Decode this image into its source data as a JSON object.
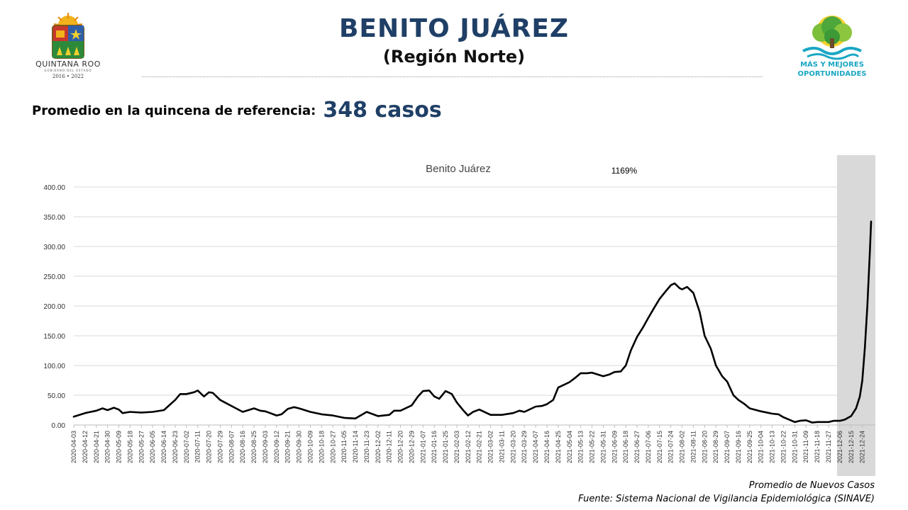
{
  "header": {
    "title": "BENITO JUÁREZ",
    "subtitle": "(Región Norte)"
  },
  "summary": {
    "label": "Promedio en la quincena de referencia:",
    "value": "348 casos"
  },
  "logo_left": {
    "name": "QUINTANA ROO",
    "line2": "GOBIERNO DEL ESTADO",
    "years": "2016 • 2022"
  },
  "logo_right": {
    "line1": "MÁS Y MEJORES",
    "line2": "OPORTUNIDADES"
  },
  "footer": {
    "line1": "Promedio de Nuevos Casos",
    "source": "Fuente: Sistema Nacional de Vigilancia Epidemiológica (SINAVE)"
  },
  "colors": {
    "title": "#1f3f66",
    "line": "#000000",
    "highlight": "#d9d9d9",
    "grid": "#d9d9d9"
  },
  "chart_data": {
    "type": "line",
    "title": "Benito Juárez",
    "annotation": "1169%",
    "ylim": [
      0,
      400
    ],
    "yticks": [
      "0.00",
      "50.00",
      "100.00",
      "150.00",
      "200.00",
      "250.00",
      "300.00",
      "350.00",
      "400.00"
    ],
    "grid": "horizontal",
    "x_start": "2020-04-03",
    "x_end": "2021-12-31",
    "xticks": [
      "2020-04-03",
      "2020-04-12",
      "2020-04-21",
      "2020-04-30",
      "2020-05-09",
      "2020-05-18",
      "2020-05-27",
      "2020-06-05",
      "2020-06-14",
      "2020-06-23",
      "2020-07-02",
      "2020-07-11",
      "2020-07-20",
      "2020-07-29",
      "2020-08-07",
      "2020-08-16",
      "2020-08-25",
      "2020-09-03",
      "2020-09-12",
      "2020-09-21",
      "2020-09-30",
      "2020-10-09",
      "2020-10-18",
      "2020-10-27",
      "2020-11-05",
      "2020-11-14",
      "2020-11-23",
      "2020-12-02",
      "2020-12-11",
      "2020-12-20",
      "2020-12-29",
      "2021-01-07",
      "2021-01-16",
      "2021-01-25",
      "2021-02-03",
      "2021-02-12",
      "2021-02-21",
      "2021-03-02",
      "2021-03-11",
      "2021-03-20",
      "2021-03-29",
      "2021-04-07",
      "2021-04-16",
      "2021-04-25",
      "2021-05-04",
      "2021-05-13",
      "2021-05-22",
      "2021-05-31",
      "2021-06-09",
      "2021-06-18",
      "2021-06-27",
      "2021-07-06",
      "2021-07-15",
      "2021-07-24",
      "2021-08-02",
      "2021-08-11",
      "2021-08-20",
      "2021-08-29",
      "2021-09-07",
      "2021-09-16",
      "2021-09-25",
      "2021-10-04",
      "2021-10-13",
      "2021-10-22",
      "2021-10-31",
      "2021-11-09",
      "2021-11-18",
      "2021-11-27",
      "2021-12-06",
      "2021-12-15",
      "2021-12-24"
    ],
    "highlight_range": [
      "2021-12-06",
      "2021-12-31"
    ],
    "series": [
      {
        "points": [
          [
            "2020-04-03",
            14
          ],
          [
            "2020-04-12",
            20
          ],
          [
            "2020-04-21",
            24
          ],
          [
            "2020-04-26",
            28
          ],
          [
            "2020-04-30",
            25
          ],
          [
            "2020-05-05",
            29
          ],
          [
            "2020-05-09",
            26
          ],
          [
            "2020-05-12",
            20
          ],
          [
            "2020-05-18",
            22
          ],
          [
            "2020-05-27",
            21
          ],
          [
            "2020-06-05",
            22
          ],
          [
            "2020-06-14",
            25
          ],
          [
            "2020-06-23",
            42
          ],
          [
            "2020-06-27",
            52
          ],
          [
            "2020-07-02",
            52
          ],
          [
            "2020-07-08",
            55
          ],
          [
            "2020-07-11",
            58
          ],
          [
            "2020-07-16",
            48
          ],
          [
            "2020-07-20",
            55
          ],
          [
            "2020-07-23",
            54
          ],
          [
            "2020-07-29",
            42
          ],
          [
            "2020-08-07",
            32
          ],
          [
            "2020-08-16",
            22
          ],
          [
            "2020-08-25",
            28
          ],
          [
            "2020-08-30",
            24
          ],
          [
            "2020-09-03",
            23
          ],
          [
            "2020-09-12",
            16
          ],
          [
            "2020-09-16",
            18
          ],
          [
            "2020-09-21",
            27
          ],
          [
            "2020-09-26",
            30
          ],
          [
            "2020-09-30",
            28
          ],
          [
            "2020-10-09",
            22
          ],
          [
            "2020-10-18",
            18
          ],
          [
            "2020-10-27",
            16
          ],
          [
            "2020-11-05",
            12
          ],
          [
            "2020-11-14",
            11
          ],
          [
            "2020-11-23",
            22
          ],
          [
            "2020-12-02",
            15
          ],
          [
            "2020-12-11",
            17
          ],
          [
            "2020-12-15",
            24
          ],
          [
            "2020-12-20",
            24
          ],
          [
            "2020-12-29",
            33
          ],
          [
            "2021-01-03",
            48
          ],
          [
            "2021-01-07",
            57
          ],
          [
            "2021-01-12",
            58
          ],
          [
            "2021-01-16",
            48
          ],
          [
            "2021-01-20",
            44
          ],
          [
            "2021-01-25",
            57
          ],
          [
            "2021-01-30",
            52
          ],
          [
            "2021-02-03",
            38
          ],
          [
            "2021-02-08",
            25
          ],
          [
            "2021-02-12",
            16
          ],
          [
            "2021-02-16",
            22
          ],
          [
            "2021-02-21",
            26
          ],
          [
            "2021-03-02",
            17
          ],
          [
            "2021-03-11",
            17
          ],
          [
            "2021-03-20",
            20
          ],
          [
            "2021-03-25",
            24
          ],
          [
            "2021-03-29",
            22
          ],
          [
            "2021-04-07",
            31
          ],
          [
            "2021-04-12",
            32
          ],
          [
            "2021-04-16",
            35
          ],
          [
            "2021-04-21",
            42
          ],
          [
            "2021-04-25",
            63
          ],
          [
            "2021-04-30",
            68
          ],
          [
            "2021-05-04",
            72
          ],
          [
            "2021-05-09",
            80
          ],
          [
            "2021-05-13",
            87
          ],
          [
            "2021-05-18",
            87
          ],
          [
            "2021-05-22",
            88
          ],
          [
            "2021-05-31",
            82
          ],
          [
            "2021-06-05",
            85
          ],
          [
            "2021-06-09",
            89
          ],
          [
            "2021-06-14",
            90
          ],
          [
            "2021-06-18",
            100
          ],
          [
            "2021-06-22",
            125
          ],
          [
            "2021-06-27",
            148
          ],
          [
            "2021-07-02",
            165
          ],
          [
            "2021-07-06",
            180
          ],
          [
            "2021-07-11",
            198
          ],
          [
            "2021-07-15",
            212
          ],
          [
            "2021-07-20",
            225
          ],
          [
            "2021-07-24",
            235
          ],
          [
            "2021-07-27",
            238
          ],
          [
            "2021-07-31",
            230
          ],
          [
            "2021-08-02",
            228
          ],
          [
            "2021-08-06",
            232
          ],
          [
            "2021-08-11",
            222
          ],
          [
            "2021-08-16",
            190
          ],
          [
            "2021-08-20",
            150
          ],
          [
            "2021-08-25",
            128
          ],
          [
            "2021-08-29",
            100
          ],
          [
            "2021-09-03",
            82
          ],
          [
            "2021-09-07",
            73
          ],
          [
            "2021-09-12",
            50
          ],
          [
            "2021-09-16",
            42
          ],
          [
            "2021-09-21",
            35
          ],
          [
            "2021-09-25",
            28
          ],
          [
            "2021-10-04",
            23
          ],
          [
            "2021-10-13",
            19
          ],
          [
            "2021-10-18",
            18
          ],
          [
            "2021-10-22",
            13
          ],
          [
            "2021-10-31",
            5
          ],
          [
            "2021-11-04",
            7
          ],
          [
            "2021-11-09",
            8
          ],
          [
            "2021-11-14",
            4
          ],
          [
            "2021-11-18",
            5
          ],
          [
            "2021-11-27",
            5
          ],
          [
            "2021-12-01",
            7
          ],
          [
            "2021-12-06",
            7
          ],
          [
            "2021-12-10",
            9
          ],
          [
            "2021-12-15",
            15
          ],
          [
            "2021-12-19",
            28
          ],
          [
            "2021-12-22",
            48
          ],
          [
            "2021-12-24",
            75
          ],
          [
            "2021-12-26",
            130
          ],
          [
            "2021-12-28",
            200
          ],
          [
            "2021-12-30",
            290
          ],
          [
            "2021-12-31",
            342
          ]
        ]
      }
    ]
  }
}
